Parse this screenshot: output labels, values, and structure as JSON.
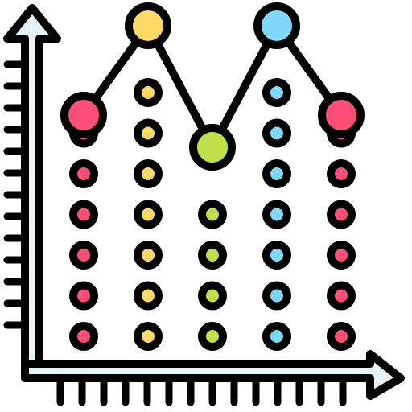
{
  "icon": {
    "name": "dot-plot-chart-icon",
    "colors": {
      "outline": "#000000",
      "axis_fill": "#e8f3f8",
      "pink": "#ff4f79",
      "yellow": "#ffd966",
      "green": "#bfe04a",
      "blue": "#7fd8f7"
    },
    "columns": [
      {
        "color_key": "pink",
        "dots": 6,
        "peak_level": 6
      },
      {
        "color_key": "yellow",
        "dots": 7,
        "peak_level": 8
      },
      {
        "color_key": "green",
        "dots": 4,
        "peak_level": 5
      },
      {
        "color_key": "blue",
        "dots": 7,
        "peak_level": 8
      },
      {
        "color_key": "pink",
        "dots": 6,
        "peak_level": 6
      }
    ]
  }
}
